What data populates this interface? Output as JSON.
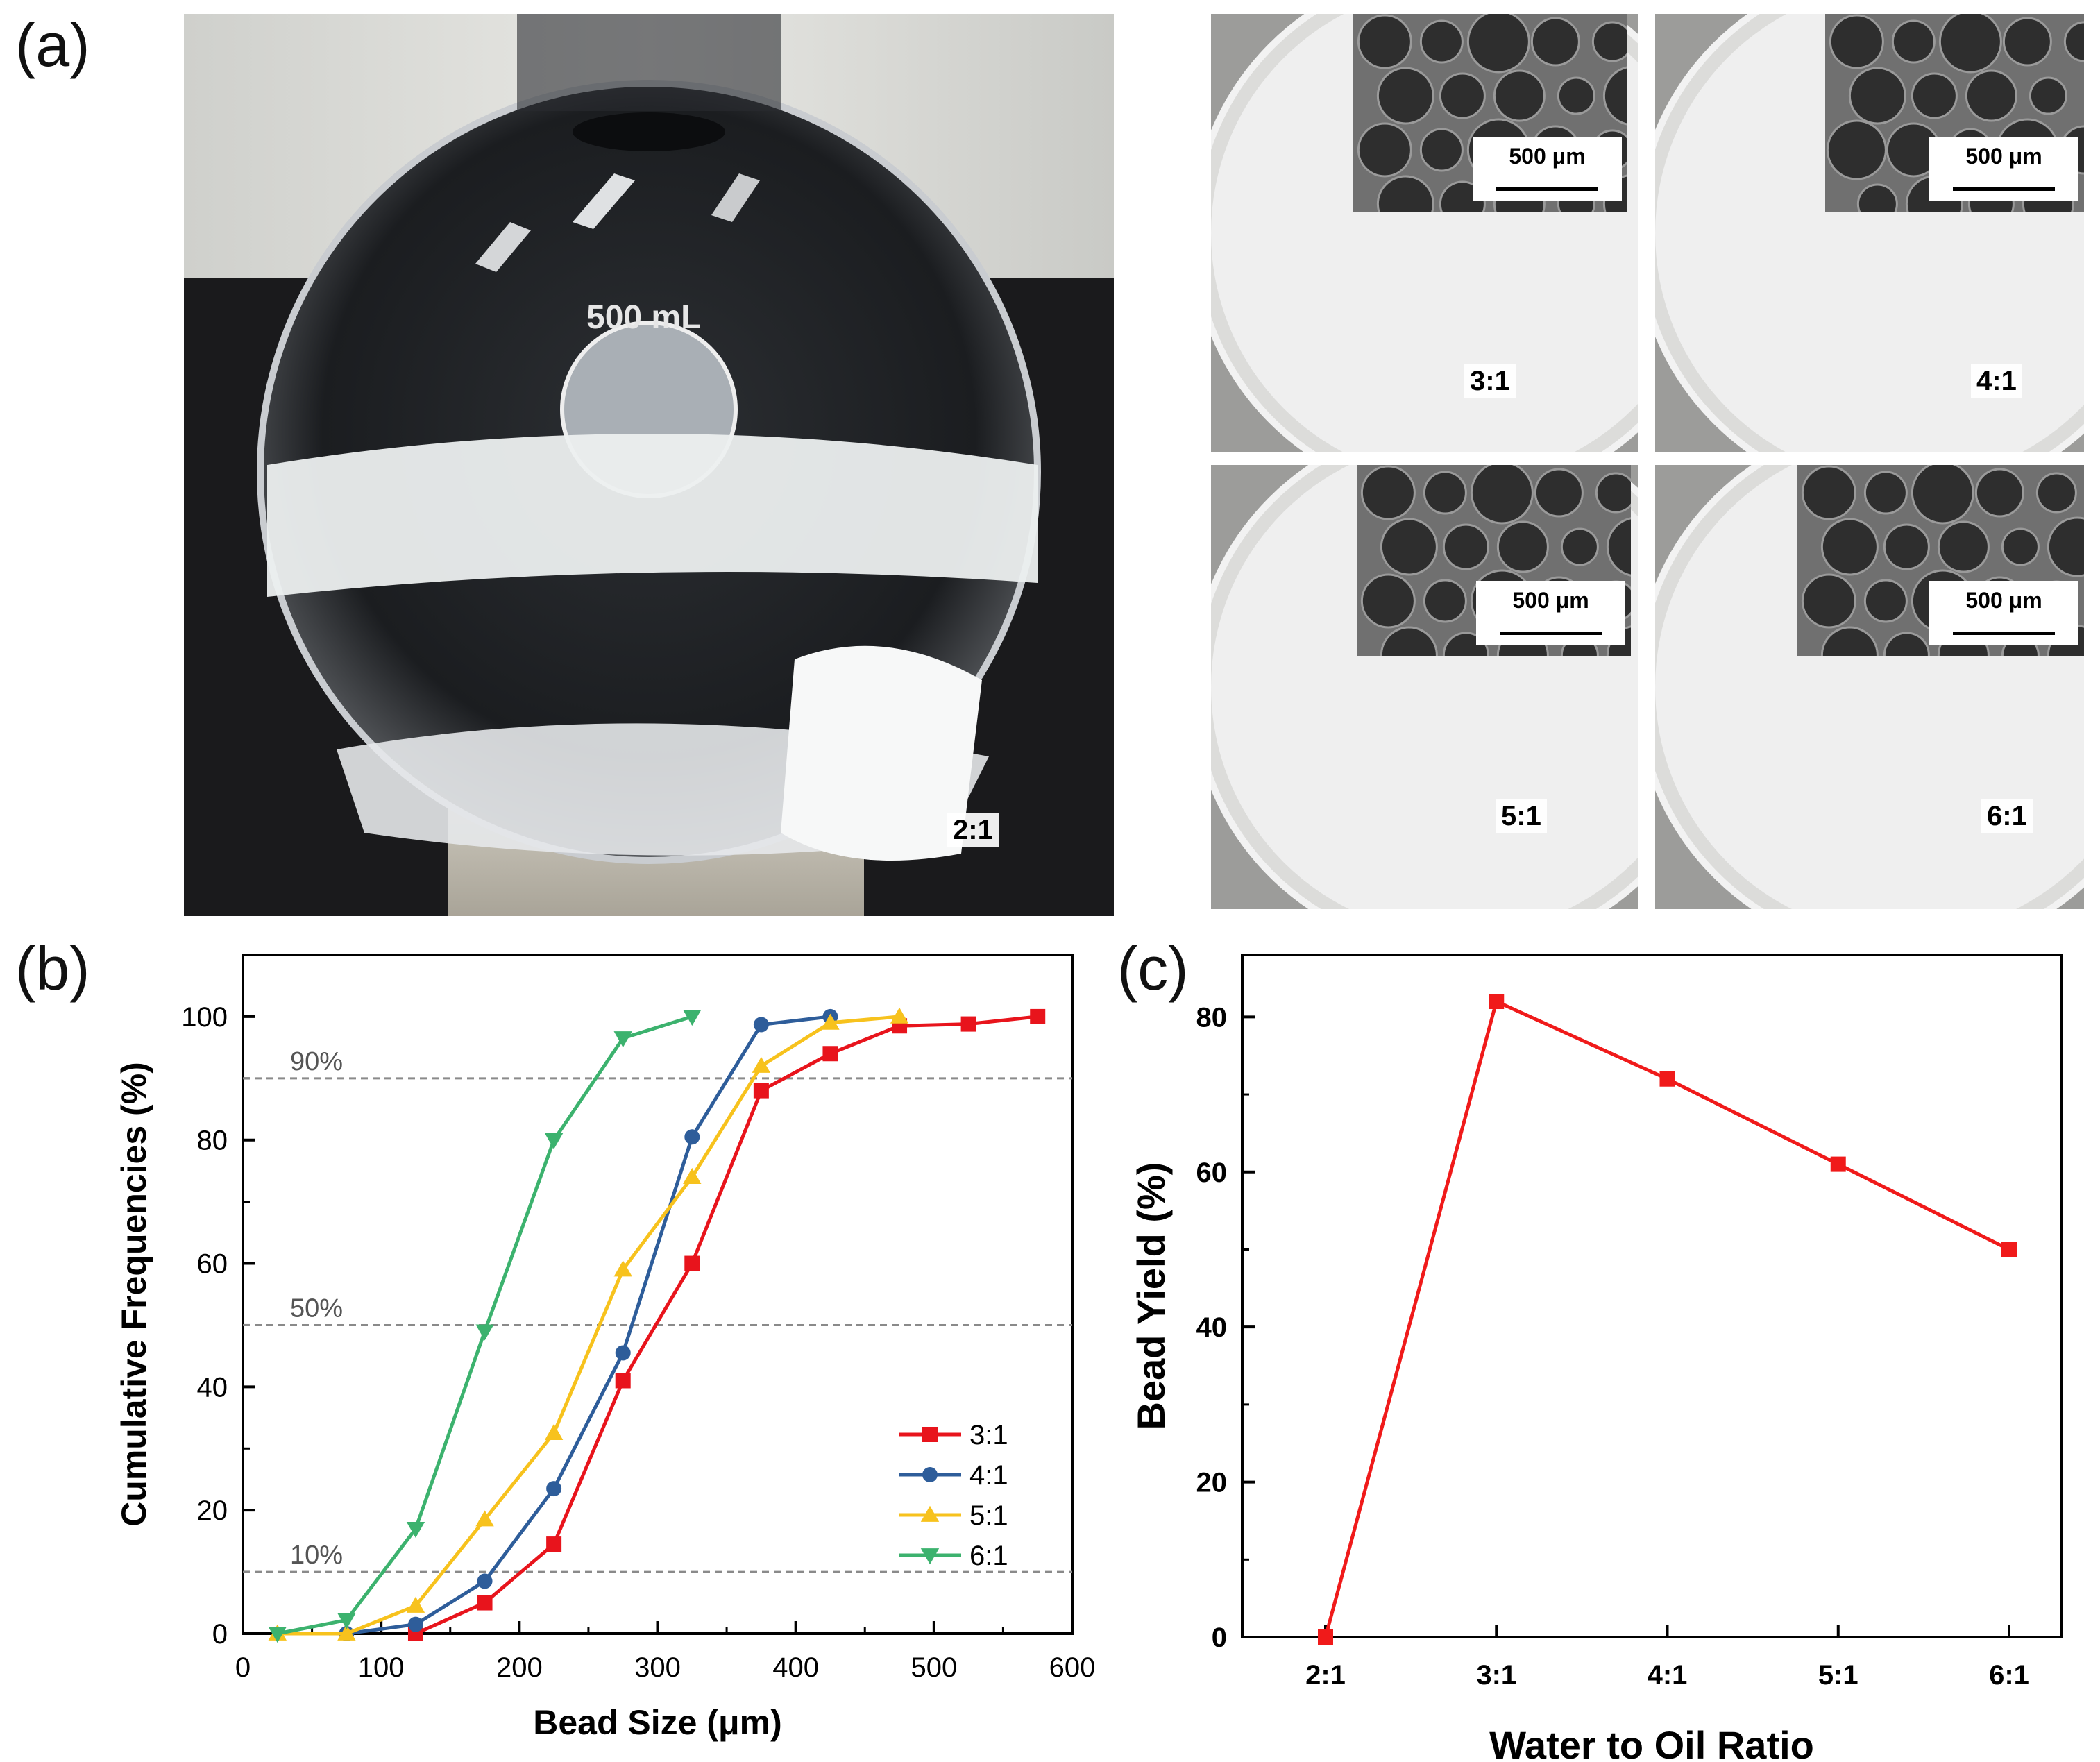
{
  "panels": {
    "a": {
      "letter": "(a)"
    },
    "b": {
      "letter": "(b)"
    },
    "c": {
      "letter": "(c)"
    }
  },
  "photo_flask": {
    "capacity_label": "500 mL",
    "ratio_label": "2:1"
  },
  "petri_dishes": [
    {
      "ratio_label": "3:1",
      "scale_label": "500 μm"
    },
    {
      "ratio_label": "4:1",
      "scale_label": "500 μm"
    },
    {
      "ratio_label": "5:1",
      "scale_label": "500 μm"
    },
    {
      "ratio_label": "6:1",
      "scale_label": "500 μm"
    }
  ],
  "colors": {
    "series_3_1": "#e8141c",
    "series_4_1": "#2e5d9a",
    "series_5_1": "#f7c21d",
    "series_6_1": "#3cb26e",
    "yield_line": "#f01a1a",
    "reference_line": "#8a8a8a"
  },
  "chart_data": [
    {
      "type": "line",
      "xlabel": "Bead Size (μm)",
      "ylabel": "Cumulative Frequencies (%)",
      "xlim": [
        0,
        600
      ],
      "ylim": [
        0,
        110
      ],
      "xticks": [
        0,
        100,
        200,
        300,
        400,
        500,
        600
      ],
      "yticks": [
        0,
        20,
        40,
        60,
        80,
        100
      ],
      "legend_position": "lower-right",
      "reference_lines": [
        {
          "y": 90,
          "label": "90%"
        },
        {
          "y": 50,
          "label": "50%"
        },
        {
          "y": 10,
          "label": "10%"
        }
      ],
      "series": [
        {
          "name": "3:1",
          "marker": "square",
          "x": [
            125,
            175,
            225,
            275,
            325,
            375,
            425,
            475,
            525,
            575
          ],
          "y": [
            0,
            5,
            14.5,
            41,
            60,
            88,
            94,
            98.5,
            98.8,
            100
          ]
        },
        {
          "name": "4:1",
          "marker": "circle",
          "x": [
            75,
            125,
            175,
            225,
            275,
            325,
            375,
            425
          ],
          "y": [
            0,
            1.5,
            8.5,
            23.5,
            45.5,
            80.5,
            98.7,
            100
          ]
        },
        {
          "name": "5:1",
          "marker": "triangle-up",
          "x": [
            25,
            75,
            125,
            175,
            225,
            275,
            325,
            375,
            425,
            475
          ],
          "y": [
            0,
            0,
            4.5,
            18.5,
            32.5,
            59,
            74,
            92,
            99,
            100
          ]
        },
        {
          "name": "6:1",
          "marker": "triangle-down",
          "x": [
            25,
            75,
            125,
            175,
            225,
            275,
            325
          ],
          "y": [
            0,
            2.2,
            17,
            49,
            80,
            96.5,
            100
          ]
        }
      ]
    },
    {
      "type": "line",
      "xlabel": "Water to Oil Ratio",
      "ylabel": "Bead Yield (%)",
      "ylim": [
        0,
        88
      ],
      "yticks": [
        0,
        20,
        40,
        60,
        80
      ],
      "categories": [
        "2:1",
        "3:1",
        "4:1",
        "5:1",
        "6:1"
      ],
      "series": [
        {
          "marker": "square",
          "values": [
            0,
            82,
            72,
            61,
            50
          ]
        }
      ]
    }
  ]
}
